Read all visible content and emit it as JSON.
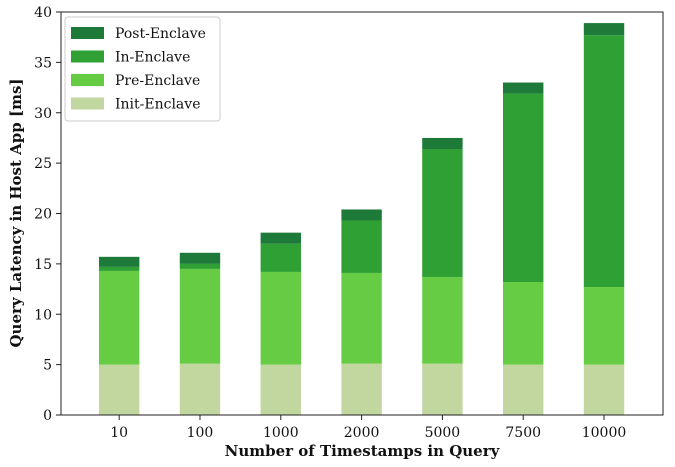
{
  "chart_data": {
    "type": "bar",
    "stacked": true,
    "title": "",
    "xlabel": "Number of Timestamps in Query",
    "ylabel": "Query Latency in Host App [ms]",
    "ylim": [
      0,
      40
    ],
    "yticks": [
      0,
      5,
      10,
      15,
      20,
      25,
      30,
      35,
      40
    ],
    "categories": [
      "10",
      "100",
      "1000",
      "2000",
      "5000",
      "7500",
      "10000"
    ],
    "series": [
      {
        "name": "Init-Enclave",
        "color": "#c2d6a0",
        "values": [
          5.0,
          5.1,
          5.0,
          5.1,
          5.1,
          5.0,
          5.0
        ]
      },
      {
        "name": "Pre-Enclave",
        "color": "#66cc44",
        "values": [
          9.3,
          9.4,
          9.2,
          9.0,
          8.6,
          8.2,
          7.7
        ]
      },
      {
        "name": "In-Enclave",
        "color": "#2ea034",
        "values": [
          0.4,
          0.5,
          2.8,
          5.2,
          12.7,
          18.7,
          25.0
        ]
      },
      {
        "name": "Post-Enclave",
        "color": "#1d7a38",
        "values": [
          1.0,
          1.1,
          1.1,
          1.1,
          1.1,
          1.1,
          1.2
        ]
      }
    ],
    "legend": {
      "position": "top-left",
      "order": [
        "Post-Enclave",
        "In-Enclave",
        "Pre-Enclave",
        "Init-Enclave"
      ]
    },
    "grid": false
  }
}
